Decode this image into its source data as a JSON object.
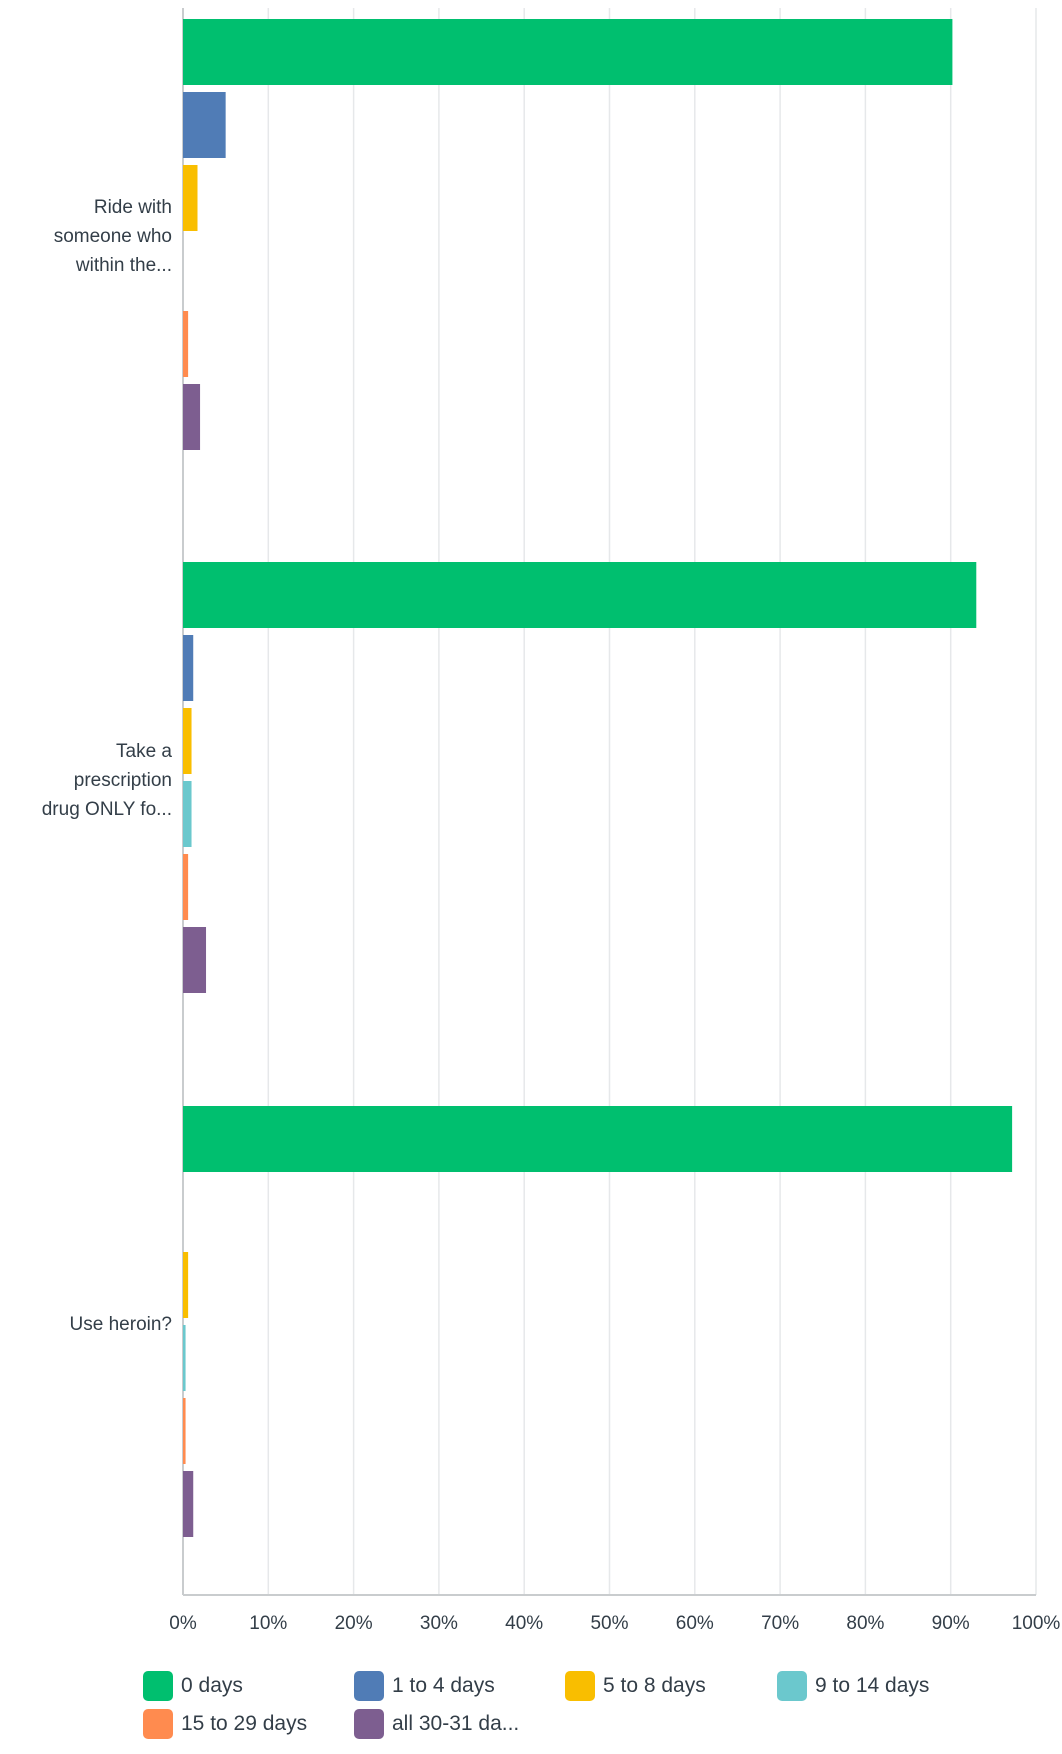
{
  "chart_data": {
    "type": "bar",
    "orientation": "horizontal",
    "categories": [
      "Ride with someone who within the...",
      "Take a prescription drug ONLY fo...",
      "Use heroin?"
    ],
    "category_lines": [
      [
        "Ride with",
        "someone who",
        "within the..."
      ],
      [
        "Take a",
        "prescription",
        "drug ONLY fo..."
      ],
      [
        "Use heroin?"
      ]
    ],
    "series": [
      {
        "name": "0 days",
        "color": "#00bf6f",
        "values": [
          90.2,
          93.0,
          97.2
        ]
      },
      {
        "name": "1 to 4 days",
        "color": "#507cb6",
        "values": [
          5.0,
          1.2,
          0
        ]
      },
      {
        "name": "5 to 8 days",
        "color": "#f9be00",
        "values": [
          1.7,
          1.0,
          0.6
        ]
      },
      {
        "name": "9 to 14 days",
        "color": "#6bc8cd",
        "values": [
          0,
          1.0,
          0.3
        ]
      },
      {
        "name": "15 to 29 days",
        "color": "#ff8b4f",
        "values": [
          0.6,
          0.6,
          0.3
        ]
      },
      {
        "name": "all 30-31 da...",
        "color": "#7d5e90",
        "values": [
          2.0,
          2.7,
          1.2
        ]
      }
    ],
    "xlim": [
      0,
      100
    ],
    "x_ticks": [
      "0%",
      "10%",
      "20%",
      "30%",
      "40%",
      "50%",
      "60%",
      "70%",
      "80%",
      "90%",
      "100%"
    ],
    "grid": true,
    "legend_position": "bottom"
  }
}
